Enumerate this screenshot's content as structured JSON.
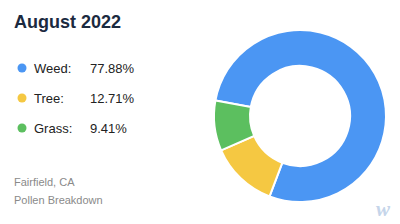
{
  "chart_data": {
    "type": "donut",
    "title": "August 2022",
    "subtitle": [
      "Fairfield, CA",
      "Pollen Breakdown"
    ],
    "annotations": [
      "w"
    ],
    "categories": [
      "Weed:",
      "Tree:",
      "Grass:"
    ],
    "values": [
      77.88,
      12.71,
      9.41
    ],
    "value_labels": [
      "77.88%",
      "12.71%",
      "9.41%"
    ],
    "colors": [
      "#4B96F3",
      "#F5C842",
      "#5CBF5F"
    ],
    "legend": "left"
  }
}
